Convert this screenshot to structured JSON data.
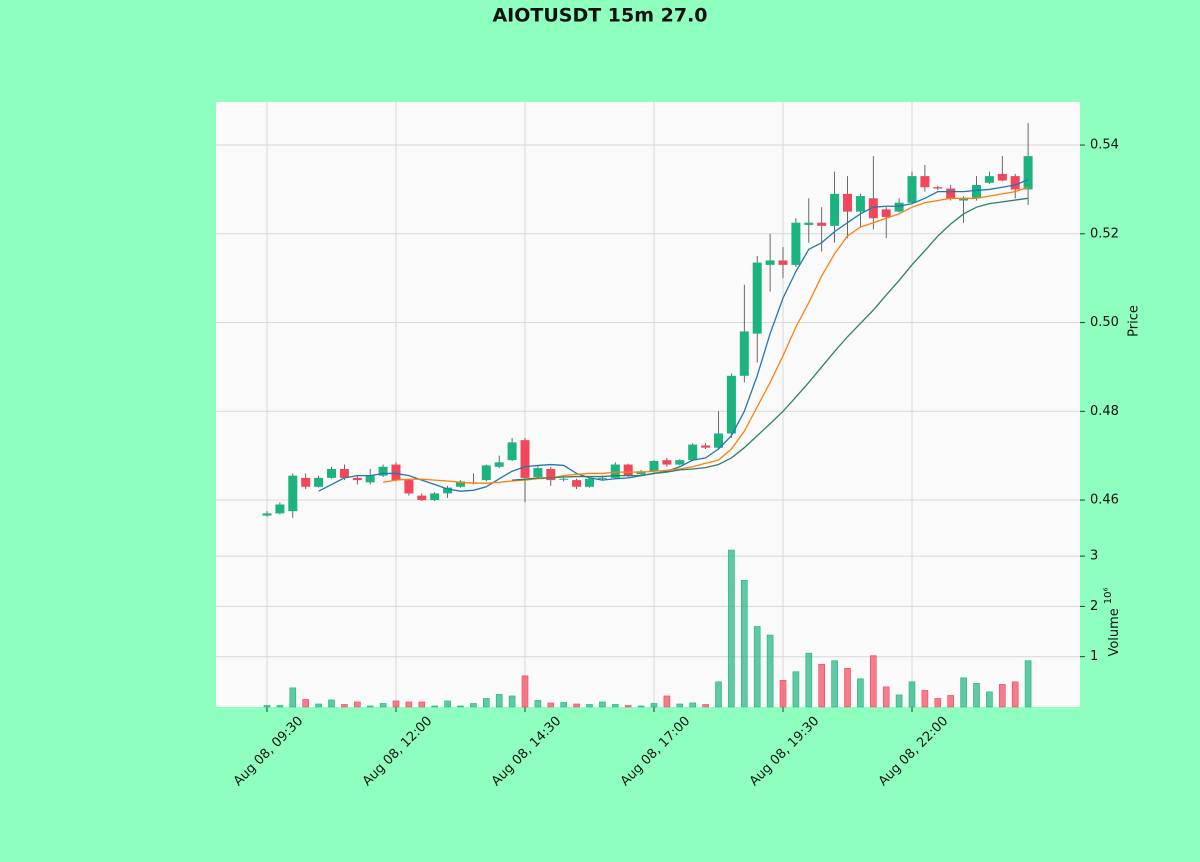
{
  "chart_data": {
    "type": "candlestick",
    "title": "AIOTUSDT 15m 27.0",
    "categories": [
      "Aug 08, 09:30",
      null,
      null,
      null,
      null,
      null,
      null,
      null,
      null,
      null,
      "Aug 08, 12:00",
      null,
      null,
      null,
      null,
      null,
      null,
      null,
      null,
      null,
      "Aug 08, 14:30",
      null,
      null,
      null,
      null,
      null,
      null,
      null,
      null,
      null,
      "Aug 08, 17:00",
      null,
      null,
      null,
      null,
      null,
      null,
      null,
      null,
      null,
      "Aug 08, 19:30",
      null,
      null,
      null,
      null,
      null,
      null,
      null,
      null,
      null,
      "Aug 08, 22:00",
      null,
      null,
      null,
      null,
      null,
      null,
      null,
      null,
      null
    ],
    "open": [
      0.4565,
      0.457,
      0.4575,
      0.465,
      0.463,
      0.465,
      0.467,
      0.465,
      0.464,
      0.4655,
      0.468,
      0.4645,
      0.461,
      0.46,
      0.4615,
      0.463,
      0.4638,
      0.4645,
      0.4675,
      0.469,
      0.4735,
      0.4652,
      0.467,
      0.4648,
      0.4645,
      0.463,
      0.4648,
      0.465,
      0.468,
      0.4658,
      0.4665,
      0.469,
      0.468,
      0.469,
      0.4723,
      0.4718,
      0.475,
      0.488,
      0.4975,
      0.513,
      0.514,
      0.513,
      0.522,
      0.5225,
      0.5218,
      0.529,
      0.525,
      0.528,
      0.5255,
      0.525,
      0.527,
      0.533,
      0.5305,
      0.5302,
      0.5275,
      0.528,
      0.5315,
      0.5335,
      0.533,
      0.53
    ],
    "high": [
      0.4575,
      0.4595,
      0.466,
      0.466,
      0.4655,
      0.4675,
      0.468,
      0.4655,
      0.467,
      0.468,
      0.4685,
      0.4648,
      0.4615,
      0.4618,
      0.4632,
      0.4645,
      0.466,
      0.468,
      0.47,
      0.474,
      0.474,
      0.4678,
      0.4675,
      0.4652,
      0.4648,
      0.465,
      0.4655,
      0.4685,
      0.4682,
      0.4668,
      0.469,
      0.4695,
      0.4692,
      0.4728,
      0.4728,
      0.48,
      0.4885,
      0.5085,
      0.515,
      0.52,
      0.517,
      0.5235,
      0.528,
      0.526,
      0.534,
      0.533,
      0.529,
      0.5375,
      0.526,
      0.528,
      0.534,
      0.5355,
      0.5308,
      0.531,
      0.5285,
      0.533,
      0.534,
      0.5375,
      0.5335,
      0.545
    ],
    "low": [
      0.4562,
      0.4568,
      0.456,
      0.4625,
      0.4628,
      0.4648,
      0.4645,
      0.4635,
      0.4635,
      0.4652,
      0.4642,
      0.461,
      0.4598,
      0.4598,
      0.4605,
      0.4628,
      0.4635,
      0.4642,
      0.4672,
      0.4688,
      0.4595,
      0.4648,
      0.4632,
      0.4642,
      0.4625,
      0.4628,
      0.4645,
      0.4648,
      0.4652,
      0.4655,
      0.4662,
      0.4675,
      0.4678,
      0.4688,
      0.4715,
      0.4715,
      0.474,
      0.4865,
      0.491,
      0.507,
      0.51,
      0.5125,
      0.518,
      0.516,
      0.518,
      0.519,
      0.5215,
      0.521,
      0.519,
      0.5248,
      0.5268,
      0.5295,
      0.5298,
      0.5275,
      0.5225,
      0.5275,
      0.5312,
      0.5318,
      0.528,
      0.5265
    ],
    "close": [
      0.457,
      0.459,
      0.4655,
      0.463,
      0.465,
      0.467,
      0.465,
      0.4645,
      0.4655,
      0.4675,
      0.4645,
      0.4615,
      0.46,
      0.4615,
      0.4628,
      0.4642,
      0.464,
      0.4678,
      0.4685,
      0.473,
      0.465,
      0.4672,
      0.4645,
      0.4648,
      0.463,
      0.4648,
      0.465,
      0.468,
      0.4655,
      0.4665,
      0.4688,
      0.468,
      0.469,
      0.4725,
      0.4718,
      0.475,
      0.488,
      0.498,
      0.5135,
      0.514,
      0.513,
      0.5225,
      0.5225,
      0.5218,
      0.529,
      0.525,
      0.5285,
      0.5235,
      0.5238,
      0.527,
      0.533,
      0.5305,
      0.5302,
      0.528,
      0.528,
      0.531,
      0.533,
      0.532,
      0.53,
      0.5375
    ],
    "ma_series": [
      {
        "color": "#1f77b4",
        "values": [
          null,
          null,
          null,
          null,
          0.462,
          0.4635,
          0.465,
          0.4655,
          0.4655,
          0.466,
          0.466,
          0.4655,
          0.4645,
          0.4635,
          0.4625,
          0.462,
          0.4622,
          0.463,
          0.4648,
          0.4665,
          0.4675,
          0.4678,
          0.468,
          0.4678,
          0.466,
          0.465,
          0.4645,
          0.4648,
          0.465,
          0.4655,
          0.466,
          0.4665,
          0.4675,
          0.469,
          0.4695,
          0.4715,
          0.4745,
          0.48,
          0.488,
          0.4975,
          0.5055,
          0.5115,
          0.5165,
          0.518,
          0.5205,
          0.5225,
          0.5245,
          0.526,
          0.5262,
          0.5262,
          0.5268,
          0.528,
          0.5295,
          0.5295,
          0.5295,
          0.5298,
          0.53,
          0.5305,
          0.531,
          0.5322
        ]
      },
      {
        "color": "#ff7f0e",
        "values": [
          null,
          null,
          null,
          null,
          null,
          null,
          null,
          null,
          null,
          0.464,
          0.4645,
          0.4647,
          0.4647,
          0.4645,
          0.4643,
          0.464,
          0.4638,
          0.4638,
          0.464,
          0.4643,
          0.4645,
          0.4648,
          0.465,
          0.4655,
          0.4658,
          0.466,
          0.466,
          0.4663,
          0.4663,
          0.4663,
          0.4665,
          0.4667,
          0.467,
          0.4675,
          0.4683,
          0.469,
          0.4715,
          0.4755,
          0.481,
          0.4865,
          0.4925,
          0.499,
          0.5045,
          0.5105,
          0.5155,
          0.5195,
          0.5215,
          0.5225,
          0.5235,
          0.5245,
          0.526,
          0.527,
          0.5275,
          0.528,
          0.528,
          0.528,
          0.5285,
          0.529,
          0.5295,
          0.5305
        ]
      },
      {
        "color": "#2f7f6a",
        "values": [
          null,
          null,
          null,
          null,
          null,
          null,
          null,
          null,
          null,
          null,
          null,
          null,
          null,
          null,
          null,
          null,
          null,
          null,
          null,
          0.4645,
          0.4647,
          0.465,
          0.465,
          0.4652,
          0.4653,
          0.4653,
          0.4653,
          0.4655,
          0.4655,
          0.4655,
          0.466,
          0.4663,
          0.4668,
          0.467,
          0.4673,
          0.468,
          0.4695,
          0.4718,
          0.4745,
          0.4772,
          0.48,
          0.4832,
          0.4865,
          0.49,
          0.4935,
          0.4968,
          0.4998,
          0.5028,
          0.5062,
          0.5095,
          0.513,
          0.5162,
          0.5195,
          0.5222,
          0.5245,
          0.526,
          0.5268,
          0.5272,
          0.5276,
          0.528
        ]
      }
    ],
    "volume": [
      0.03,
      0.03,
      0.38,
      0.15,
      0.06,
      0.14,
      0.05,
      0.1,
      0.02,
      0.07,
      0.12,
      0.1,
      0.1,
      0.02,
      0.12,
      0.02,
      0.07,
      0.17,
      0.25,
      0.22,
      0.62,
      0.13,
      0.08,
      0.09,
      0.06,
      0.05,
      0.1,
      0.05,
      0.03,
      0.02,
      0.07,
      0.22,
      0.06,
      0.08,
      0.05,
      0.5,
      3.12,
      2.52,
      1.6,
      1.43,
      0.53,
      0.7,
      1.07,
      0.85,
      0.92,
      0.77,
      0.56,
      1.02,
      0.4,
      0.24,
      0.5,
      0.33,
      0.17,
      0.23,
      0.58,
      0.47,
      0.3,
      0.45,
      0.5,
      0.92
    ],
    "up_color": "#1bb37e",
    "down_color": "#f2465a",
    "ylabel": "Price",
    "ylim": [
      0.451,
      0.5497
    ],
    "yticks": [
      0.46,
      0.48,
      {
        "value": 0.5,
        "label": "0.50"
      },
      0.52,
      0.54
    ],
    "volume_ylabel": "Volume",
    "volume_scale": "10⁶",
    "volume_ylim": [
      0,
      3.32
    ],
    "volume_yticks": [
      1,
      2,
      3
    ],
    "grid": true
  }
}
